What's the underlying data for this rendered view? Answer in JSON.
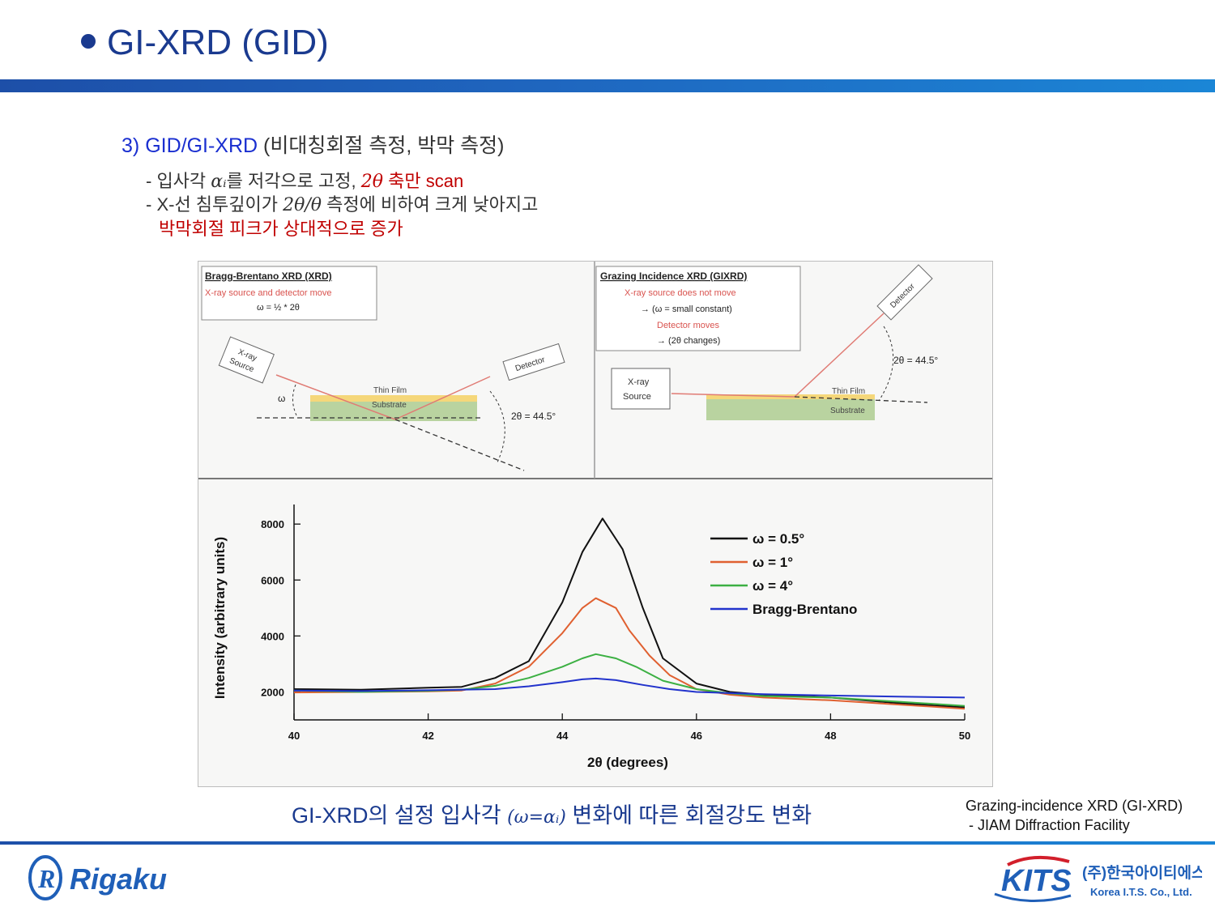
{
  "slide": {
    "title": "GI-XRD (GID)",
    "heading": {
      "number": "3)",
      "label": "GID/GI-XRD",
      "rest": "(비대칭회절 측정, 박막 측정)"
    },
    "bullet1": {
      "prefix": "- 입사각",
      "math": "αᵢ",
      "mid": "를 저각으로 고정,",
      "math2": "2θ",
      "rest": "축만 scan"
    },
    "bullet2": {
      "prefix": "- X-선 침투깊이가",
      "math": "2θ/θ",
      "rest": "측정에 비하여 크게 낮아지고"
    },
    "bullet3": "박막회절 피크가 상대적으로 증가",
    "caption": {
      "text": "GI-XRD의 설정 입사각",
      "math": "(ω=αᵢ)",
      "rest": "변화에 따른 회절강도 변화"
    },
    "reference": {
      "line1": "Grazing-incidence XRD (GI-XRD)",
      "line2": "- JIAM Diffraction Facility"
    },
    "colors": {
      "title": "#1a3a8f",
      "accent_blue": "#1a2fd0",
      "accent_red": "#c00000",
      "bar": "#1d5fb8"
    }
  },
  "diagram_left": {
    "title": "Bragg-Brentano XRD (XRD)",
    "subtitle": "X-ray source and detector move",
    "formula": "ω = ½ * 2θ",
    "source_label": "X-ray Source",
    "detector_label": "Detector",
    "thin_film": "Thin Film",
    "substrate": "Substrate",
    "omega": "ω",
    "angle": "2θ = 44.5°"
  },
  "diagram_right": {
    "title": "Grazing Incidence XRD (GIXRD)",
    "line1": "X-ray source does not move",
    "line2": "→ (ω = small constant)",
    "line3": "Detector moves",
    "line4": "→ (2θ changes)",
    "source_label": "X-ray Source",
    "detector_label": "Detector",
    "thin_film": "Thin Film",
    "substrate": "Substrate",
    "angle": "2θ = 44.5°"
  },
  "chart_data": {
    "type": "line",
    "xlabel": "2θ (degrees)",
    "ylabel": "Intensity (arbitrary units)",
    "xlim": [
      40,
      50
    ],
    "ylim": [
      1000,
      8700
    ],
    "xticks": [
      40,
      42,
      44,
      46,
      48,
      50
    ],
    "yticks": [
      2000,
      4000,
      6000,
      8000
    ],
    "legend_position": "top-right",
    "grid": false,
    "series": [
      {
        "name": "ω = 0.5°",
        "color": "#111111",
        "x": [
          40,
          41,
          42,
          42.5,
          43,
          43.5,
          44,
          44.3,
          44.6,
          44.9,
          45.2,
          45.5,
          46,
          46.5,
          47,
          48,
          49,
          50
        ],
        "y": [
          2100,
          2080,
          2150,
          2180,
          2500,
          3100,
          5200,
          7000,
          8200,
          7100,
          5000,
          3200,
          2300,
          2000,
          1900,
          1800,
          1600,
          1450
        ]
      },
      {
        "name": "ω = 1°",
        "color": "#e06030",
        "x": [
          40,
          41,
          42,
          42.5,
          43,
          43.5,
          44,
          44.3,
          44.5,
          44.8,
          45,
          45.3,
          45.6,
          46,
          46.5,
          47,
          48,
          49,
          50
        ],
        "y": [
          1980,
          2000,
          2020,
          2050,
          2300,
          2900,
          4100,
          5000,
          5350,
          5000,
          4200,
          3300,
          2600,
          2100,
          1900,
          1800,
          1700,
          1550,
          1400
        ]
      },
      {
        "name": "ω = 4°",
        "color": "#3cb043",
        "x": [
          40,
          41,
          42,
          42.5,
          43,
          43.5,
          44,
          44.3,
          44.5,
          44.8,
          45.1,
          45.5,
          46,
          46.5,
          47,
          48,
          49,
          50
        ],
        "y": [
          2050,
          2000,
          2040,
          2080,
          2220,
          2500,
          2900,
          3200,
          3350,
          3200,
          2900,
          2400,
          2100,
          1950,
          1850,
          1800,
          1650,
          1500
        ]
      },
      {
        "name": "Bragg-Brentano",
        "color": "#2233cc",
        "x": [
          40,
          41,
          42,
          43,
          43.5,
          44,
          44.3,
          44.5,
          44.8,
          45.2,
          45.6,
          46,
          47,
          48,
          49,
          50
        ],
        "y": [
          2050,
          2030,
          2060,
          2100,
          2200,
          2350,
          2450,
          2480,
          2420,
          2250,
          2100,
          2000,
          1920,
          1870,
          1830,
          1800
        ]
      }
    ]
  },
  "logos": {
    "rigaku": "Rigaku",
    "kits": "KITS",
    "kits_korean": "(주)한국아이티에스",
    "kits_english": "Korea I.T.S. Co., Ltd."
  }
}
